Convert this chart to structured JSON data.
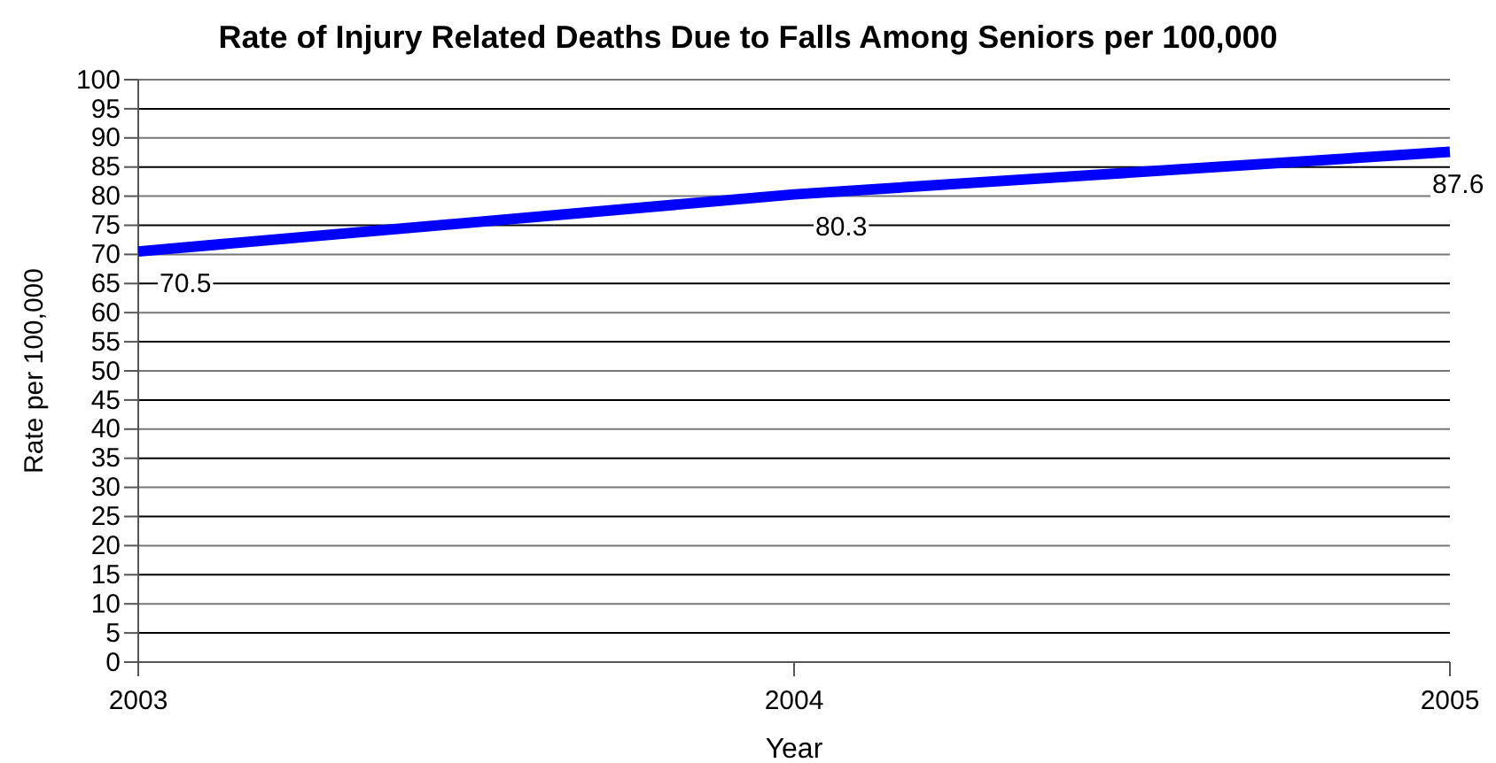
{
  "chart_data": {
    "type": "line",
    "title": "Rate of Injury Related Deaths Due to Falls Among Seniors per 100,000",
    "xlabel": "Year",
    "ylabel": "Rate per 100,000",
    "categories": [
      "2003",
      "2004",
      "2005"
    ],
    "series": [
      {
        "color": "#0000ff",
        "values": [
          70.5,
          80.3,
          87.6
        ]
      }
    ],
    "ylim": [
      0,
      100
    ],
    "yticks": [
      0,
      5,
      10,
      15,
      20,
      25,
      30,
      35,
      40,
      45,
      50,
      55,
      60,
      65,
      70,
      75,
      80,
      85,
      90,
      95,
      100
    ],
    "grid": "y",
    "data_labels": true
  }
}
